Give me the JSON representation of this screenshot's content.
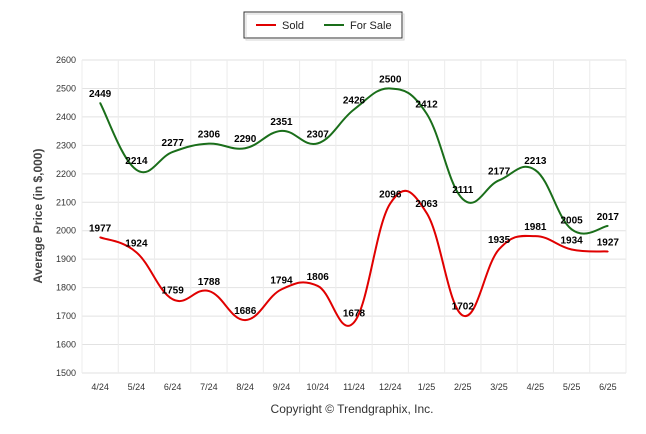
{
  "chart_data": {
    "type": "line",
    "title": "",
    "ylabel": "Average Price (in $,000)",
    "xlabel": "",
    "categories": [
      "4/24",
      "5/24",
      "6/24",
      "7/24",
      "8/24",
      "9/24",
      "10/24",
      "11/24",
      "12/24",
      "1/25",
      "2/25",
      "3/25",
      "4/25",
      "5/25",
      "6/25"
    ],
    "series": [
      {
        "name": "Sold",
        "color": "#e00000",
        "values": [
          1977,
          1924,
          1759,
          1788,
          1686,
          1794,
          1806,
          1678,
          2096,
          2063,
          1702,
          1935,
          1981,
          1934,
          1927
        ]
      },
      {
        "name": "For Sale",
        "color": "#1a6e1a",
        "values": [
          2449,
          2214,
          2277,
          2306,
          2290,
          2351,
          2307,
          2426,
          2500,
          2412,
          2111,
          2177,
          2213,
          2005,
          2017
        ]
      }
    ],
    "ylim": [
      1500,
      2600
    ],
    "yticks": [
      1500,
      1600,
      1700,
      1800,
      1900,
      2000,
      2100,
      2200,
      2300,
      2400,
      2500,
      2600
    ],
    "grid": true,
    "legend": "top-center"
  },
  "footer": {
    "copyright": "Copyright © Trendgraphix, Inc."
  }
}
